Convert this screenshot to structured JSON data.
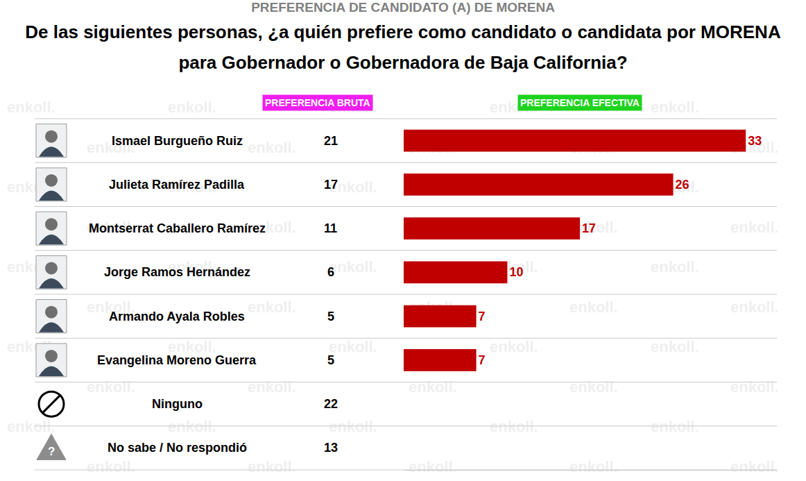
{
  "chart_data": {
    "type": "bar",
    "orientation": "horizontal",
    "supertitle": "PREFERENCIA DE CANDIDATO (A) DE MORENA",
    "title": "De las siguientes personas, ¿a quién prefiere como candidato o candidata por MORENA para Gobernador o Gobernadora de Baja California?",
    "categories": [
      "Ismael Burgueño Ruiz",
      "Julieta Ramírez Padilla",
      "Montserrat Caballero Ramírez",
      "Jorge Ramos Hernández",
      "Armando Ayala Robles",
      "Evangelina Moreno Guerra",
      "Ninguno",
      "No sabe / No respondió"
    ],
    "series": [
      {
        "name": "PREFERENCIA BRUTA",
        "type": "text",
        "values": [
          21,
          17,
          11,
          6,
          5,
          5,
          22,
          13
        ]
      },
      {
        "name": "PREFERENCIA EFECTIVA",
        "type": "bar",
        "color": "#c00000",
        "values": [
          33,
          26,
          17,
          10,
          7,
          7,
          null,
          null
        ]
      }
    ],
    "xlim": [
      0,
      36
    ],
    "tick_labels": false,
    "grid": false,
    "data_labels": true,
    "watermark": "enkoll.",
    "unknown_icon": "?"
  }
}
